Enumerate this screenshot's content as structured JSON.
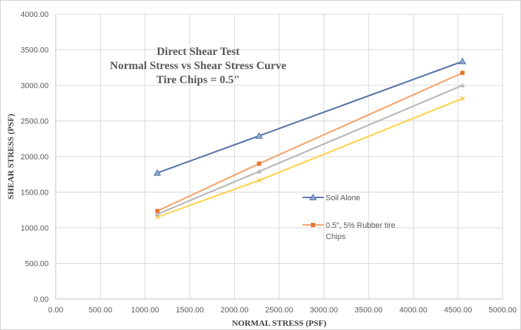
{
  "chart_data": {
    "type": "line",
    "title_lines": [
      "Direct Shear Test",
      "Normal Stress vs Shear Stress Curve",
      "Tire Chips = 0.5\""
    ],
    "xlabel": "NORMAL STRESS (PSF)",
    "ylabel": "SHEAR STRESS (PSF)",
    "xlim": [
      0,
      5000
    ],
    "ylim": [
      0,
      4000
    ],
    "x_ticks": [
      "0.00",
      "500.00",
      "1000.00",
      "1500.00",
      "2000.00",
      "2500.00",
      "3000.00",
      "3500.00",
      "4000.00",
      "4500.00",
      "5000.00"
    ],
    "y_ticks": [
      "0.00",
      "500.00",
      "1000.00",
      "1500.00",
      "2000.00",
      "2500.00",
      "3000.00",
      "3500.00",
      "4000.00"
    ],
    "grid": true,
    "legend_position": "right",
    "series": [
      {
        "name": "Soil Alone",
        "color": "#5a76a8",
        "marker": "triangle",
        "x": [
          1137,
          2275,
          4550
        ],
        "y": [
          1770,
          2290,
          3335
        ]
      },
      {
        "name": "0.5\", 5% Rubber tire Chips",
        "color": "#f4a56e",
        "marker": "square",
        "x": [
          1137,
          2275,
          4550
        ],
        "y": [
          1235,
          1900,
          3175
        ]
      },
      {
        "color": "#b8b8b8",
        "marker": "triangle-small",
        "x": [
          1137,
          2275,
          4550
        ],
        "y": [
          1190,
          1790,
          3000
        ]
      },
      {
        "color": "#ffd34f",
        "marker": "x",
        "x": [
          1137,
          2275,
          4550
        ],
        "y": [
          1150,
          1665,
          2815
        ]
      }
    ]
  }
}
